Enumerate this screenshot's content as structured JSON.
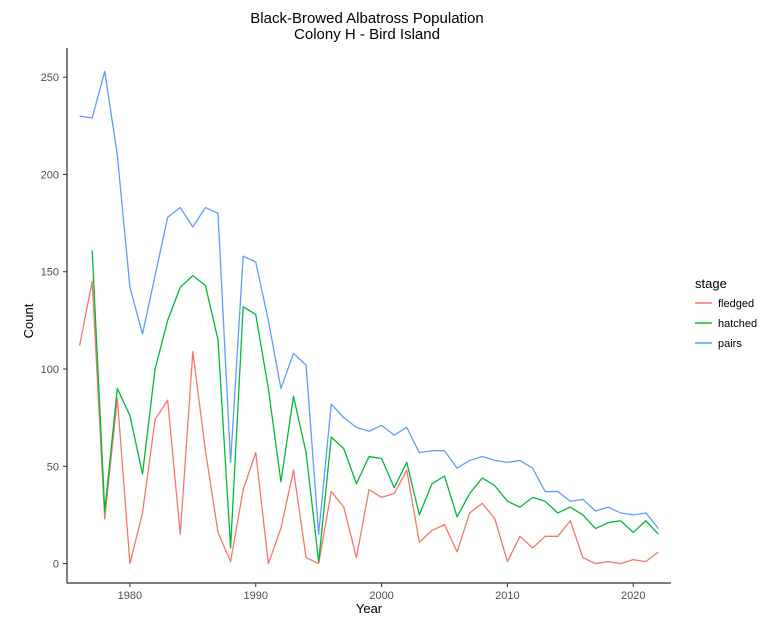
{
  "chart_data": {
    "type": "line",
    "title": "Black-Browed Albatross Population",
    "subtitle": "Colony H - Bird Island",
    "xlabel": "Year",
    "ylabel": "Count",
    "xlim": [
      1975,
      2023
    ],
    "ylim": [
      -10,
      265
    ],
    "xticks": [
      1980,
      1990,
      2000,
      2010,
      2020
    ],
    "yticks": [
      0,
      50,
      100,
      150,
      200,
      250
    ],
    "grid": false,
    "legend": {
      "title": "stage",
      "position": "right"
    },
    "x": [
      1976,
      1977,
      1978,
      1979,
      1980,
      1981,
      1982,
      1983,
      1984,
      1985,
      1986,
      1987,
      1988,
      1989,
      1990,
      1991,
      1992,
      1993,
      1994,
      1995,
      1996,
      1997,
      1998,
      1999,
      2000,
      2001,
      2002,
      2003,
      2004,
      2005,
      2006,
      2007,
      2008,
      2009,
      2010,
      2011,
      2012,
      2013,
      2014,
      2015,
      2016,
      2017,
      2018,
      2019,
      2020,
      2021,
      2022
    ],
    "series": [
      {
        "name": "fledged",
        "color": "#F8766D",
        "values": [
          112,
          145,
          23,
          85,
          0,
          26,
          74,
          84,
          15,
          109,
          58,
          16,
          1,
          38,
          57,
          0,
          18,
          48,
          3,
          0,
          37,
          29,
          3,
          38,
          34,
          36,
          48,
          11,
          17,
          20,
          6,
          26,
          31,
          23,
          1,
          14,
          8,
          14,
          14,
          22,
          3,
          0,
          1,
          0,
          2,
          1,
          6
        ]
      },
      {
        "name": "hatched",
        "color": "#00BA38",
        "values": [
          null,
          161,
          27,
          90,
          76,
          46,
          100,
          125,
          142,
          148,
          143,
          115,
          8,
          132,
          128,
          90,
          42,
          86,
          57,
          1,
          65,
          59,
          41,
          55,
          54,
          39,
          52,
          25,
          41,
          45,
          24,
          36,
          44,
          40,
          32,
          29,
          34,
          32,
          26,
          29,
          25,
          18,
          21,
          22,
          16,
          22,
          15
        ]
      },
      {
        "name": "pairs",
        "color": "#619CFF",
        "values": [
          230,
          229,
          253,
          210,
          142,
          118,
          148,
          178,
          183,
          173,
          183,
          180,
          52,
          158,
          155,
          125,
          90,
          108,
          102,
          15,
          82,
          75,
          70,
          68,
          71,
          66,
          70,
          57,
          58,
          58,
          49,
          53,
          55,
          53,
          52,
          53,
          49,
          37,
          37,
          32,
          33,
          27,
          29,
          26,
          25,
          26,
          18
        ]
      }
    ]
  }
}
